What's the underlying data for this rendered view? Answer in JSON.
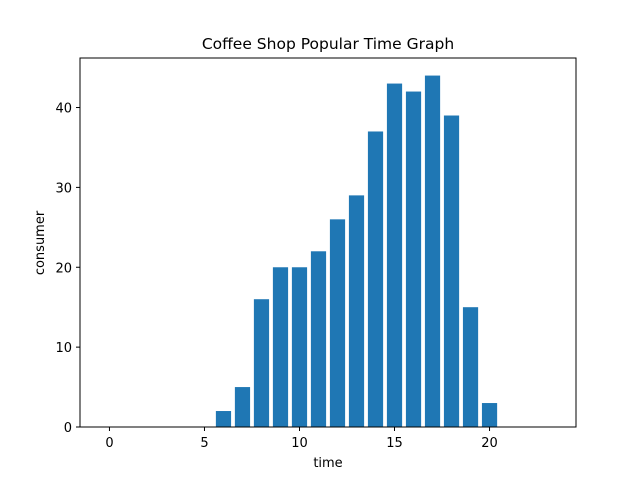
{
  "chart_data": {
    "type": "bar",
    "title": "Coffee Shop Popular Time Graph",
    "xlabel": "time",
    "ylabel": "consumer",
    "x": [
      0,
      1,
      2,
      3,
      4,
      5,
      6,
      7,
      8,
      9,
      10,
      11,
      12,
      13,
      14,
      15,
      16,
      17,
      18,
      19,
      20,
      21,
      22,
      23
    ],
    "values": [
      0,
      0,
      0,
      0,
      0,
      0,
      2,
      5,
      16,
      20,
      20,
      22,
      26,
      29,
      37,
      43,
      42,
      44,
      39,
      15,
      3,
      0,
      0,
      0
    ],
    "xlim": [
      -1.55,
      24.55
    ],
    "ylim": [
      0,
      46.2
    ],
    "xticks": [
      0,
      5,
      10,
      15,
      20
    ],
    "yticks": [
      0,
      10,
      20,
      30,
      40
    ],
    "bar_color": "#1f77b4",
    "grid": false,
    "legend": "none"
  }
}
